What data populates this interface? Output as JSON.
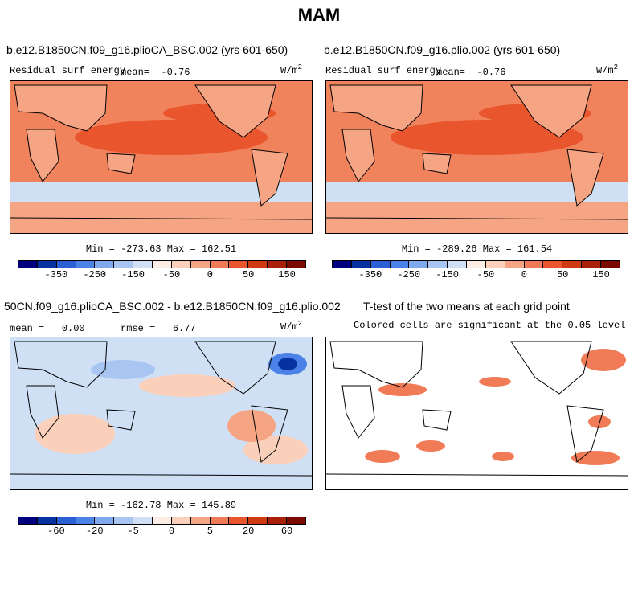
{
  "figure": {
    "title": "MAM"
  },
  "panels": [
    {
      "title": "b.e12.B1850CN.f09_g16.plioCA_BSC.002 (yrs 601-650)",
      "variable": "Residual surf energy",
      "mean_label": "mean=",
      "mean_value": "-0.76",
      "units": "W/m",
      "units_exp": "2",
      "stats": "Min = -273.63 Max = 162.51"
    },
    {
      "title": "b.e12.B1850CN.f09_g16.plio.002 (yrs 601-650)",
      "variable": "Residual surf energy",
      "mean_label": "mean=",
      "mean_value": "-0.76",
      "units": "W/m",
      "units_exp": "2",
      "stats": "Min = -289.26 Max = 161.54"
    },
    {
      "title": "50CN.f09_g16.plioCA_BSC.002 - b.e12.B1850CN.f09_g16.plio.002",
      "mean_label": "mean =",
      "mean_value": "0.00",
      "rmse_label": "rmse =",
      "rmse_value": "6.77",
      "units": "W/m",
      "units_exp": "2",
      "stats": "Min = -162.78 Max = 145.89"
    },
    {
      "title": "T-test of the two means at each grid point",
      "subtitle": "Colored cells are significant at the 0.05 level"
    }
  ],
  "colorbars": [
    {
      "ticks": [
        "-350",
        "-250",
        "-150",
        "-50",
        "0",
        "50",
        "150"
      ]
    },
    {
      "ticks": [
        "-60",
        "-20",
        "-5",
        "0",
        "5",
        "20",
        "60"
      ]
    }
  ],
  "colors": {
    "palette": [
      "#00007f",
      "#0532a0",
      "#2b5fd6",
      "#4a82e8",
      "#7fa8ee",
      "#a9c6f2",
      "#cfe0f5",
      "#fdeee5",
      "#fbd0bb",
      "#f6a584",
      "#f07b56",
      "#e9552c",
      "#d03a12",
      "#a82008",
      "#7a0a00"
    ],
    "ocean_warm": "#f0825c",
    "ocean_hot": "#e9552c",
    "land_warm": "#f6a584",
    "cool": "#cfe0f5",
    "sig": "#f07b56"
  },
  "chart_data": [
    {
      "type": "heatmap",
      "title": "b.e12.B1850CN.f09_g16.plioCA_BSC.002 (yrs 601-650)",
      "variable": "Residual surf energy",
      "units": "W/m^2",
      "mean": -0.76,
      "min": -273.63,
      "max": 162.51,
      "colorbar_ticks": [
        -350,
        -250,
        -150,
        -50,
        0,
        50,
        150
      ]
    },
    {
      "type": "heatmap",
      "title": "b.e12.B1850CN.f09_g16.plio.002 (yrs 601-650)",
      "variable": "Residual surf energy",
      "units": "W/m^2",
      "mean": -0.76,
      "min": -289.26,
      "max": 161.54,
      "colorbar_ticks": [
        -350,
        -250,
        -150,
        -50,
        0,
        50,
        150
      ]
    },
    {
      "type": "heatmap",
      "title": "50CN.f09_g16.plioCA_BSC.002 - b.e12.B1850CN.f09_g16.plio.002",
      "units": "W/m^2",
      "mean": 0.0,
      "rmse": 6.77,
      "min": -162.78,
      "max": 145.89,
      "colorbar_ticks": [
        -60,
        -20,
        -5,
        0,
        5,
        20,
        60
      ]
    },
    {
      "type": "heatmap",
      "title": "T-test of the two means at each grid point",
      "subtitle": "Colored cells are significant at the 0.05 level",
      "significance_level": 0.05
    }
  ]
}
